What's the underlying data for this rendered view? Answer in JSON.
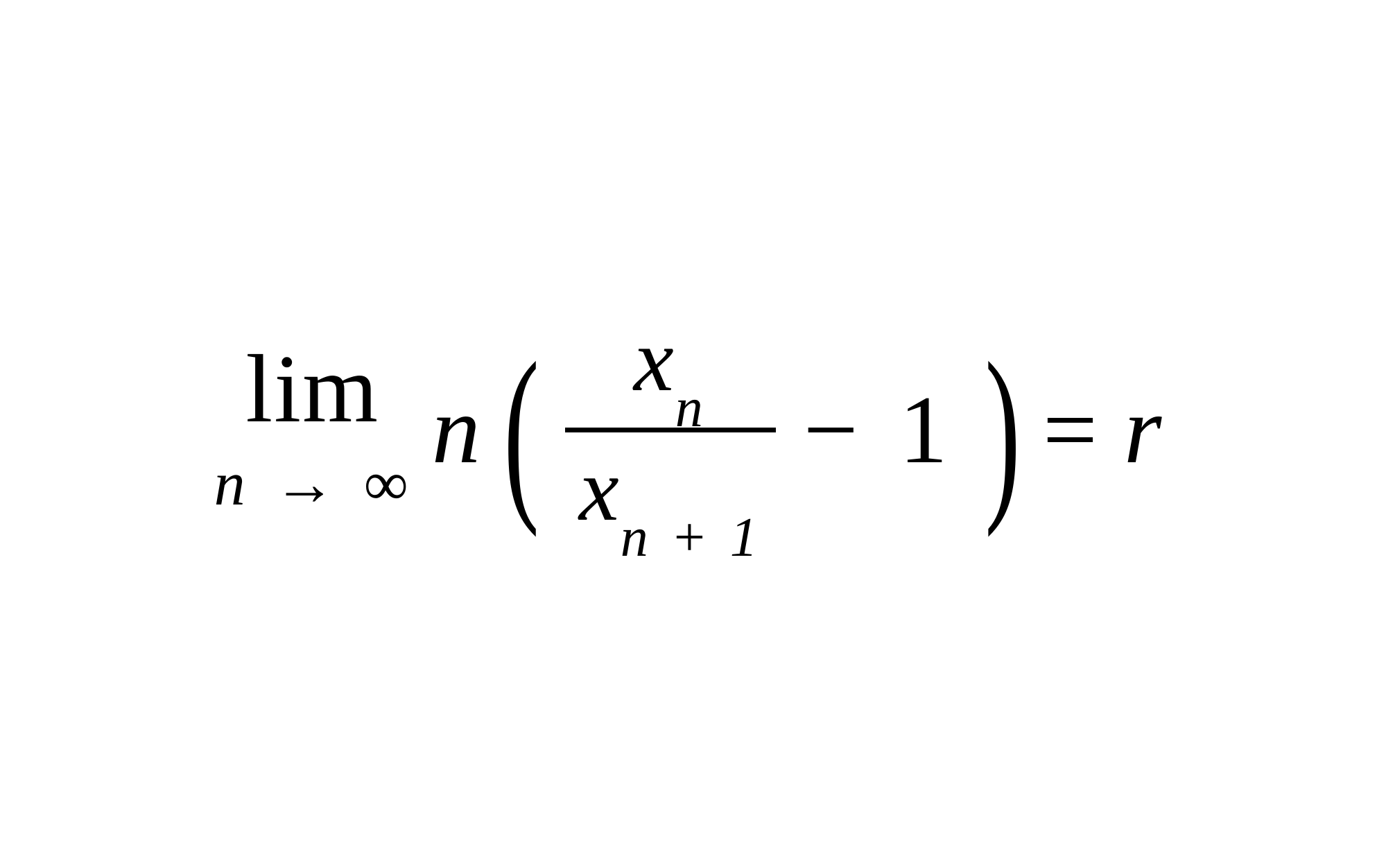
{
  "equation": {
    "limit": {
      "operator": "lim",
      "variable": "n",
      "arrow": "→",
      "target": "∞"
    },
    "coefficient": "n",
    "left_paren": "(",
    "fraction": {
      "numerator_var": "x",
      "numerator_sub": "n",
      "denominator_var": "x",
      "denominator_sub": "n + 1"
    },
    "minus": "−",
    "one": "1",
    "right_paren": ")",
    "equals": "=",
    "result": "r"
  },
  "styling": {
    "background_color": "#ffffff",
    "text_color": "#000000",
    "main_fontsize": 140,
    "sub_fontsize": 90,
    "paren_fontsize": 280,
    "frac_fontsize": 130,
    "subscript_fontsize": 80,
    "font_family": "Times New Roman",
    "frac_line_width": 7
  }
}
